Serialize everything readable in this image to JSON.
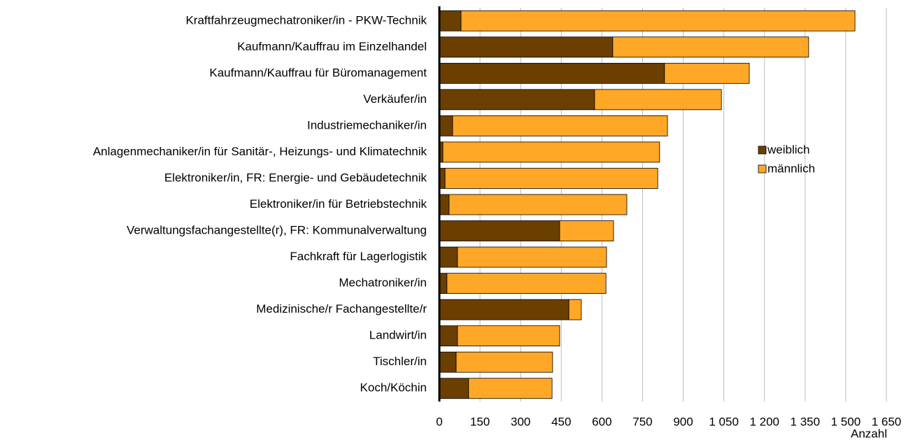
{
  "chart_data": {
    "type": "bar",
    "orientation": "horizontal",
    "stacked": true,
    "x_label": "Anzahl",
    "categories": [
      "Kraftfahrzeugmechatroniker/in - PKW-Technik",
      "Kaufmann/Kauffrau im Einzelhandel",
      "Kaufmann/Kauffrau für Büromanagement",
      "Verkäufer/in",
      "Industriemechaniker/in",
      "Anlagenmechaniker/in für Sanitär-, Heizungs- und Klimatechnik",
      "Elektroniker/in, FR: Energie- und Gebäudetechnik",
      "Elektroniker/in für Betriebstechnik",
      "Verwaltungsfachangestellte(r), FR: Kommunalverwaltung",
      "Fachkraft für Lagerlogistik",
      "Mechatroniker/in",
      "Medizinische/r Fachangestellte/r",
      "Landwirt/in",
      "Tischler/in",
      "Koch/Köchin"
    ],
    "series": [
      {
        "name": "weiblich",
        "color": "#6b3f00",
        "values": [
          80,
          640,
          831,
          573,
          49,
          13,
          21,
          36,
          444,
          67,
          28,
          478,
          67,
          62,
          108
        ]
      },
      {
        "name": "männlich",
        "color": "#ffa726",
        "values": [
          1454,
          723,
          313,
          468,
          793,
          800,
          785,
          656,
          199,
          550,
          587,
          46,
          377,
          356,
          308
        ]
      }
    ],
    "xlim": [
      0,
      1650
    ],
    "xticks": [
      0,
      150,
      300,
      450,
      600,
      750,
      900,
      {
        "value": 1050,
        "label": "1 050"
      },
      {
        "value": 1200,
        "label": "1 200"
      },
      {
        "value": 1350,
        "label": "1 350"
      },
      {
        "value": 1500,
        "label": "1 500"
      },
      {
        "value": 1650,
        "label": "1 650"
      }
    ],
    "grid": true,
    "legend": "right"
  }
}
